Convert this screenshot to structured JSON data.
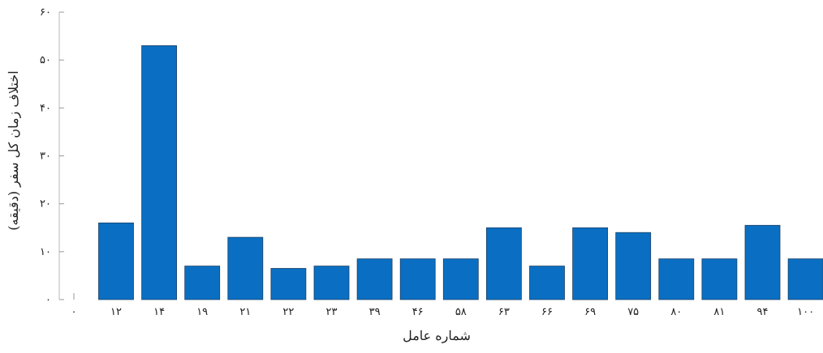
{
  "chart_data": {
    "type": "bar",
    "xlabel": "شماره عامل",
    "ylabel": "اختلاف زمان کل سفر (دقیقه)",
    "ylim": [
      0,
      60
    ],
    "yticks": [
      "۰",
      "۱۰",
      "۲۰",
      "۳۰",
      "۴۰",
      "۵۰",
      "۶۰"
    ],
    "x_origin_label": "۰",
    "categories": [
      "۱۲",
      "۱۴",
      "۱۹",
      "۲۱",
      "۲۲",
      "۲۳",
      "۳۹",
      "۴۶",
      "۵۸",
      "۶۳",
      "۶۶",
      "۶۹",
      "۷۵",
      "۸۰",
      "۸۱",
      "۹۴",
      "۱۰۰"
    ],
    "values": [
      16,
      53,
      7,
      13,
      6.5,
      7,
      8.5,
      8.5,
      8.5,
      15,
      7,
      15,
      14,
      8.5,
      8.5,
      15.5,
      8.5
    ],
    "grid": false,
    "bar_color": "#0a6fc2"
  }
}
